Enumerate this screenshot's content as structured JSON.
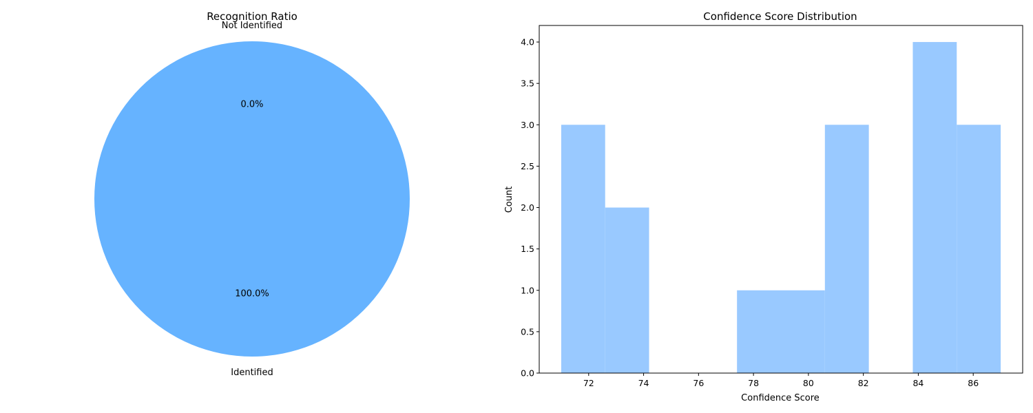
{
  "charts": [
    {
      "type": "pie",
      "title": "Recognition Ratio",
      "slices": [
        {
          "label": "Identified",
          "value": 100.0,
          "pct_label": "100.0%",
          "color": "#66b3ff"
        },
        {
          "label": "Not Identified",
          "value": 0.0,
          "pct_label": "0.0%",
          "color": "#ff9999"
        }
      ]
    },
    {
      "type": "bar",
      "subtype": "histogram",
      "title": "Confidence Score Distribution",
      "xlabel": "Confidence Score",
      "ylabel": "Count",
      "bar_color": "#99c9ff",
      "bins": [
        {
          "x0": 71.0,
          "x1": 72.6,
          "count": 3
        },
        {
          "x0": 72.6,
          "x1": 74.2,
          "count": 2
        },
        {
          "x0": 74.2,
          "x1": 75.8,
          "count": 0
        },
        {
          "x0": 75.8,
          "x1": 77.4,
          "count": 0
        },
        {
          "x0": 77.4,
          "x1": 79.0,
          "count": 1
        },
        {
          "x0": 79.0,
          "x1": 80.6,
          "count": 1
        },
        {
          "x0": 80.6,
          "x1": 82.2,
          "count": 3
        },
        {
          "x0": 82.2,
          "x1": 83.8,
          "count": 0
        },
        {
          "x0": 83.8,
          "x1": 85.4,
          "count": 4
        },
        {
          "x0": 85.4,
          "x1": 87.0,
          "count": 3
        }
      ],
      "xlim": [
        70.2,
        87.8
      ],
      "ylim": [
        0,
        4.2
      ],
      "xticks": [
        72,
        74,
        76,
        78,
        80,
        82,
        84,
        86
      ],
      "xtick_labels": [
        "72",
        "74",
        "76",
        "78",
        "80",
        "82",
        "84",
        "86"
      ],
      "yticks": [
        0,
        0.5,
        1.0,
        1.5,
        2.0,
        2.5,
        3.0,
        3.5,
        4.0
      ],
      "ytick_labels": [
        "0.0",
        "0.5",
        "1.0",
        "1.5",
        "2.0",
        "2.5",
        "3.0",
        "3.5",
        "4.0"
      ]
    }
  ]
}
